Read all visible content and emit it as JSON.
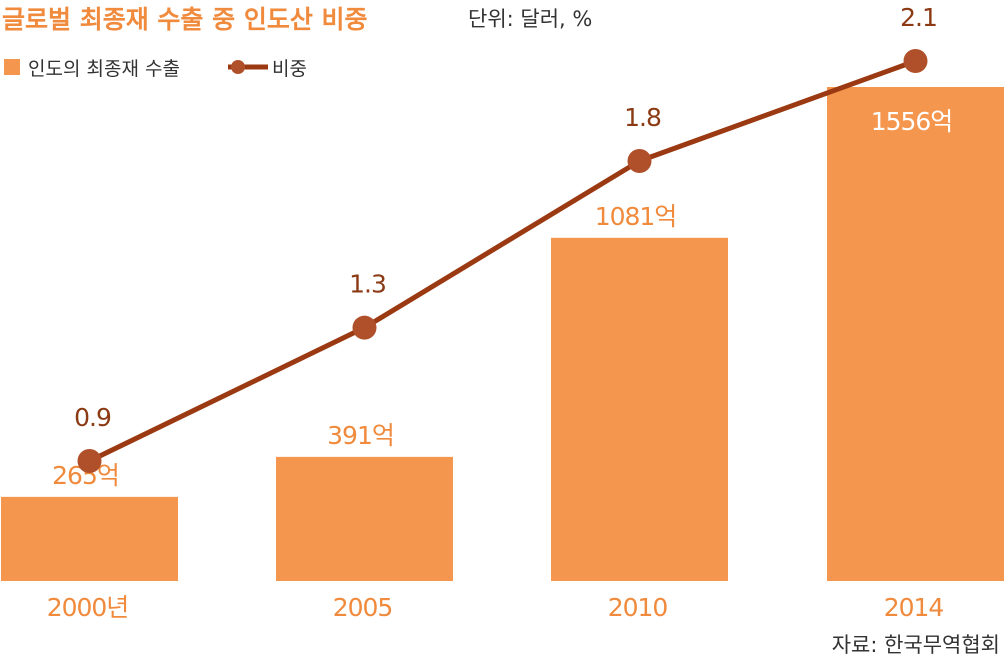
{
  "chart_data": {
    "type": "bar",
    "title": "글로벌 최종재 수출 중 인도산 비중",
    "unit": "단위: 달러, %",
    "categories": [
      "2000년",
      "2005",
      "2010",
      "2014"
    ],
    "series": [
      {
        "name": "인도의 최종재 수출",
        "type": "bar",
        "values": [
          265,
          391,
          1081,
          1556
        ],
        "labels": [
          "265억",
          "391억",
          "1081억",
          "1556억"
        ],
        "color": "#F5964F"
      },
      {
        "name": "비중",
        "type": "line",
        "values": [
          0.9,
          1.3,
          1.8,
          2.1
        ],
        "labels": [
          "0.9",
          "1.3",
          "1.8",
          "2.1"
        ],
        "color": "#9B3A12",
        "marker_color": "#B0502A"
      }
    ],
    "legend_position": "top-left",
    "grid": false,
    "source": "자료: 한국무역협회"
  },
  "colors": {
    "title": "#F08A3C",
    "text": "#333333",
    "bar_label_outside": "#F08A3C",
    "bar_label_inside": "#ffffff",
    "tick": "#F08A3C",
    "point_label": "#8B3A14"
  }
}
